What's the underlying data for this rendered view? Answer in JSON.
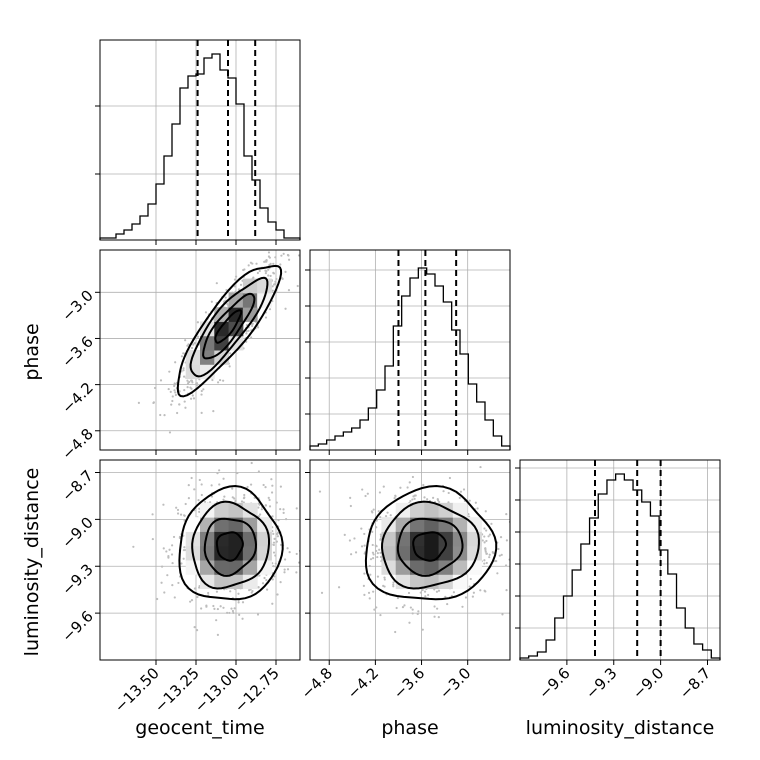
{
  "chart_data": {
    "type": "corner",
    "parameters": [
      {
        "name": "geocent_time",
        "label": "geocent_time",
        "range": [
          -13.85,
          -12.6
        ],
        "ticks": [
          -13.5,
          -13.25,
          -13.0,
          -12.75
        ],
        "tick_labels": [
          "−13.50",
          "−13.25",
          "−13.00",
          "−12.75"
        ],
        "quantiles": [
          -13.24,
          -13.05,
          -12.88
        ],
        "hist_y_max": 1.0,
        "hist_gridlines": [
          0.33,
          0.67
        ],
        "histogram": [
          0.01,
          0.01,
          0.03,
          0.05,
          0.08,
          0.12,
          0.18,
          0.28,
          0.42,
          0.58,
          0.76,
          0.82,
          0.83,
          0.91,
          0.93,
          0.85,
          0.81,
          0.68,
          0.42,
          0.3,
          0.16,
          0.09,
          0.05,
          0.01,
          0.01
        ]
      },
      {
        "name": "phase",
        "label": "phase",
        "range": [
          -5.05,
          -2.45
        ],
        "ticks": [
          -4.8,
          -4.2,
          -3.6,
          -3.0
        ],
        "tick_labels": [
          "−4.8",
          "−4.2",
          "−3.6",
          "−3.0"
        ],
        "quantiles": [
          -3.9,
          -3.55,
          -3.15
        ],
        "hist_y_max": 1.0,
        "hist_gridlines": [
          0.18,
          0.36,
          0.54,
          0.72,
          0.9
        ],
        "histogram": [
          0.02,
          0.03,
          0.05,
          0.07,
          0.09,
          0.11,
          0.15,
          0.21,
          0.3,
          0.42,
          0.62,
          0.77,
          0.86,
          0.91,
          0.88,
          0.82,
          0.74,
          0.6,
          0.48,
          0.33,
          0.24,
          0.15,
          0.07,
          0.02
        ]
      },
      {
        "name": "luminosity_distance",
        "label": "luminosity_distance",
        "range": [
          -9.9,
          -8.62
        ],
        "ticks": [
          -9.6,
          -9.3,
          -9.0,
          -8.7
        ],
        "tick_labels": [
          "−9.6",
          "−9.3",
          "−9.0",
          "−8.7"
        ],
        "quantiles": [
          -9.42,
          -9.15,
          -9.0
        ],
        "hist_y_max": 1.0,
        "hist_gridlines": [
          0.16,
          0.32,
          0.48,
          0.64,
          0.8,
          0.96
        ],
        "histogram": [
          0.01,
          0.02,
          0.04,
          0.1,
          0.21,
          0.32,
          0.45,
          0.58,
          0.71,
          0.83,
          0.9,
          0.93,
          0.9,
          0.85,
          0.79,
          0.72,
          0.55,
          0.43,
          0.26,
          0.16,
          0.08,
          0.05,
          0.01
        ]
      }
    ],
    "pairs": [
      {
        "x": "geocent_time",
        "y": "phase",
        "mean": [
          -13.05,
          -3.45
        ],
        "sd": [
          0.16,
          0.42
        ],
        "corr": 0.85
      },
      {
        "x": "geocent_time",
        "y": "luminosity_distance",
        "mean": [
          -13.04,
          -9.17
        ],
        "sd": [
          0.16,
          0.18
        ],
        "corr": 0.05
      },
      {
        "x": "phase",
        "y": "luminosity_distance",
        "mean": [
          -3.5,
          -9.17
        ],
        "sd": [
          0.42,
          0.18
        ],
        "corr": 0.05
      }
    ],
    "contour_levels": [
      "0.5sigma",
      "1sigma",
      "1.5sigma",
      "2sigma"
    ],
    "grid": true,
    "legend": "none",
    "title": "",
    "n_samples_shown": 2400
  }
}
